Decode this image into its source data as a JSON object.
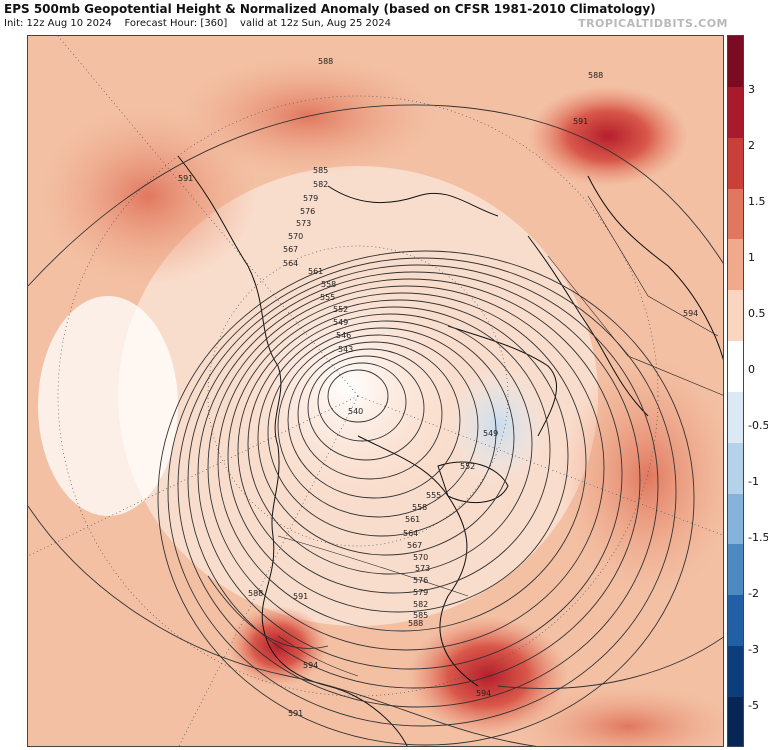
{
  "header": {
    "title": "EPS 500mb Geopotential Height & Normalized Anomaly (based on CFSR 1981-2010 Climatology)",
    "init": "Init: 12z Aug 10 2024",
    "forecast_hour": "Forecast Hour: [360]",
    "valid": "valid at 12z Sun, Aug 25 2024",
    "brand": "TROPICALTIDBITS.COM"
  },
  "colorbar": {
    "ticks": [
      "3",
      "2",
      "1.5",
      "1",
      "0.5",
      "0",
      "-0.5",
      "-1",
      "-1.5",
      "-2",
      "-3",
      "-5"
    ],
    "colors": [
      "#7a0b22",
      "#a81a2c",
      "#c9403b",
      "#e0775e",
      "#f0a98a",
      "#f9d5c2",
      "#ffffff",
      "#dbe9f5",
      "#b6d2eb",
      "#86b3da",
      "#4d8ac2",
      "#2260a6",
      "#0d3d7a",
      "#072656"
    ]
  },
  "contour_labels": [
    "588",
    "588",
    "591",
    "591",
    "585",
    "582",
    "579",
    "576",
    "573",
    "570",
    "567",
    "564",
    "561",
    "558",
    "555",
    "552",
    "549",
    "546",
    "543",
    "540",
    "549",
    "552",
    "555",
    "558",
    "561",
    "564",
    "567",
    "570",
    "573",
    "576",
    "579",
    "582",
    "585",
    "588",
    "588",
    "591",
    "594",
    "594",
    "591",
    "594"
  ]
}
